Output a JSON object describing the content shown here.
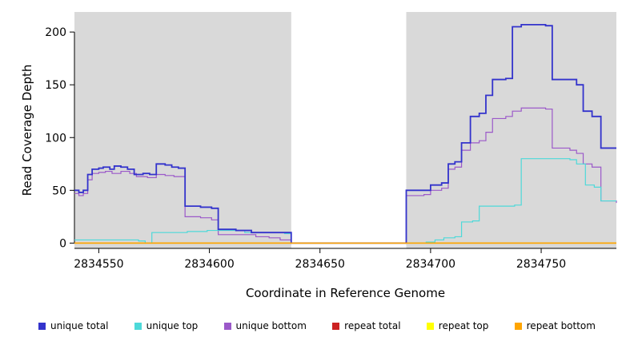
{
  "chart_data": {
    "type": "line",
    "subtype": "step",
    "title": "",
    "xlabel": "Coordinate in Reference Genome",
    "ylabel": "Read Coverage Depth",
    "xlim": [
      2834539,
      2834784
    ],
    "ylim": [
      -5,
      219
    ],
    "x_ticks": [
      2834550,
      2834600,
      2834650,
      2834700,
      2834750
    ],
    "y_ticks": [
      0,
      50,
      100,
      150,
      200
    ],
    "grid": false,
    "legend_position": "bottom",
    "plot_background": "#ffffff",
    "shaded_regions": [
      {
        "x0": 2834539,
        "x1": 2834637,
        "color": "#d9d9d9"
      },
      {
        "x0": 2834689,
        "x1": 2834784,
        "color": "#d9d9d9"
      }
    ],
    "masked_region": {
      "x0": 2834637,
      "x1": 2834689
    },
    "draw_order": [
      "repeat total",
      "repeat top",
      "unique bottom",
      "unique top",
      "unique total",
      "repeat bottom"
    ],
    "series": [
      {
        "name": "unique total",
        "color": "#3333cc",
        "width": 1.8,
        "points": [
          [
            2834539,
            50
          ],
          [
            2834541,
            48
          ],
          [
            2834543,
            50
          ],
          [
            2834545,
            65
          ],
          [
            2834547,
            70
          ],
          [
            2834550,
            71
          ],
          [
            2834552,
            72
          ],
          [
            2834555,
            70
          ],
          [
            2834557,
            73
          ],
          [
            2834560,
            72
          ],
          [
            2834563,
            70
          ],
          [
            2834566,
            65
          ],
          [
            2834570,
            66
          ],
          [
            2834573,
            65
          ],
          [
            2834576,
            75
          ],
          [
            2834580,
            74
          ],
          [
            2834583,
            72
          ],
          [
            2834586,
            71
          ],
          [
            2834589,
            35
          ],
          [
            2834596,
            34
          ],
          [
            2834601,
            33
          ],
          [
            2834604,
            13
          ],
          [
            2834612,
            12
          ],
          [
            2834619,
            10
          ],
          [
            2834630,
            10
          ],
          [
            2834637,
            0
          ],
          [
            2834689,
            50
          ],
          [
            2834697,
            50
          ],
          [
            2834700,
            55
          ],
          [
            2834705,
            57
          ],
          [
            2834708,
            75
          ],
          [
            2834711,
            77
          ],
          [
            2834714,
            95
          ],
          [
            2834718,
            120
          ],
          [
            2834722,
            123
          ],
          [
            2834725,
            140
          ],
          [
            2834728,
            155
          ],
          [
            2834734,
            156
          ],
          [
            2834737,
            205
          ],
          [
            2834741,
            207
          ],
          [
            2834748,
            207
          ],
          [
            2834752,
            206
          ],
          [
            2834755,
            155
          ],
          [
            2834763,
            155
          ],
          [
            2834766,
            150
          ],
          [
            2834769,
            125
          ],
          [
            2834773,
            120
          ],
          [
            2834777,
            90
          ],
          [
            2834784,
            90
          ]
        ]
      },
      {
        "name": "unique top",
        "color": "#4dd9d9",
        "width": 1.2,
        "points": [
          [
            2834539,
            3
          ],
          [
            2834552,
            3
          ],
          [
            2834562,
            3
          ],
          [
            2834568,
            2
          ],
          [
            2834571,
            0
          ],
          [
            2834574,
            10
          ],
          [
            2834583,
            10
          ],
          [
            2834590,
            11
          ],
          [
            2834599,
            12
          ],
          [
            2834612,
            12
          ],
          [
            2834616,
            10
          ],
          [
            2834631,
            10
          ],
          [
            2834634,
            9
          ],
          [
            2834637,
            0
          ],
          [
            2834689,
            0
          ],
          [
            2834698,
            1
          ],
          [
            2834702,
            3
          ],
          [
            2834706,
            5
          ],
          [
            2834711,
            6
          ],
          [
            2834714,
            20
          ],
          [
            2834719,
            21
          ],
          [
            2834722,
            35
          ],
          [
            2834734,
            35
          ],
          [
            2834738,
            36
          ],
          [
            2834741,
            80
          ],
          [
            2834752,
            80
          ],
          [
            2834763,
            79
          ],
          [
            2834766,
            75
          ],
          [
            2834770,
            55
          ],
          [
            2834774,
            53
          ],
          [
            2834777,
            40
          ],
          [
            2834784,
            40
          ]
        ]
      },
      {
        "name": "unique bottom",
        "color": "#9b59c9",
        "width": 1.2,
        "points": [
          [
            2834539,
            47
          ],
          [
            2834541,
            45
          ],
          [
            2834543,
            47
          ],
          [
            2834545,
            60
          ],
          [
            2834547,
            66
          ],
          [
            2834550,
            67
          ],
          [
            2834553,
            68
          ],
          [
            2834556,
            66
          ],
          [
            2834560,
            68
          ],
          [
            2834564,
            66
          ],
          [
            2834567,
            63
          ],
          [
            2834572,
            62
          ],
          [
            2834576,
            65
          ],
          [
            2834580,
            64
          ],
          [
            2834584,
            63
          ],
          [
            2834589,
            25
          ],
          [
            2834596,
            24
          ],
          [
            2834601,
            22
          ],
          [
            2834604,
            8
          ],
          [
            2834616,
            8
          ],
          [
            2834621,
            6
          ],
          [
            2834627,
            5
          ],
          [
            2834632,
            3
          ],
          [
            2834637,
            0
          ],
          [
            2834689,
            45
          ],
          [
            2834697,
            46
          ],
          [
            2834700,
            50
          ],
          [
            2834705,
            52
          ],
          [
            2834708,
            70
          ],
          [
            2834711,
            72
          ],
          [
            2834714,
            88
          ],
          [
            2834718,
            95
          ],
          [
            2834722,
            97
          ],
          [
            2834725,
            105
          ],
          [
            2834728,
            118
          ],
          [
            2834734,
            120
          ],
          [
            2834737,
            125
          ],
          [
            2834741,
            128
          ],
          [
            2834748,
            128
          ],
          [
            2834752,
            127
          ],
          [
            2834755,
            90
          ],
          [
            2834763,
            88
          ],
          [
            2834766,
            85
          ],
          [
            2834769,
            75
          ],
          [
            2834773,
            72
          ],
          [
            2834777,
            40
          ],
          [
            2834784,
            38
          ]
        ]
      },
      {
        "name": "repeat total",
        "color": "#cc2222",
        "width": 1.2,
        "points": [
          [
            2834539,
            0
          ],
          [
            2834784,
            0
          ]
        ]
      },
      {
        "name": "repeat top",
        "color": "#ffff00",
        "width": 1.2,
        "points": [
          [
            2834539,
            0
          ],
          [
            2834784,
            0
          ]
        ]
      },
      {
        "name": "repeat bottom",
        "color": "#ffa500",
        "width": 1.6,
        "points": [
          [
            2834539,
            0
          ],
          [
            2834784,
            0
          ]
        ]
      }
    ],
    "legend": [
      {
        "label": "unique total",
        "color": "#3333cc"
      },
      {
        "label": "unique top",
        "color": "#4dd9d9"
      },
      {
        "label": "unique bottom",
        "color": "#9b59c9"
      },
      {
        "label": "repeat total",
        "color": "#cc2222"
      },
      {
        "label": "repeat top",
        "color": "#ffff00"
      },
      {
        "label": "repeat bottom",
        "color": "#ffa500"
      }
    ]
  }
}
